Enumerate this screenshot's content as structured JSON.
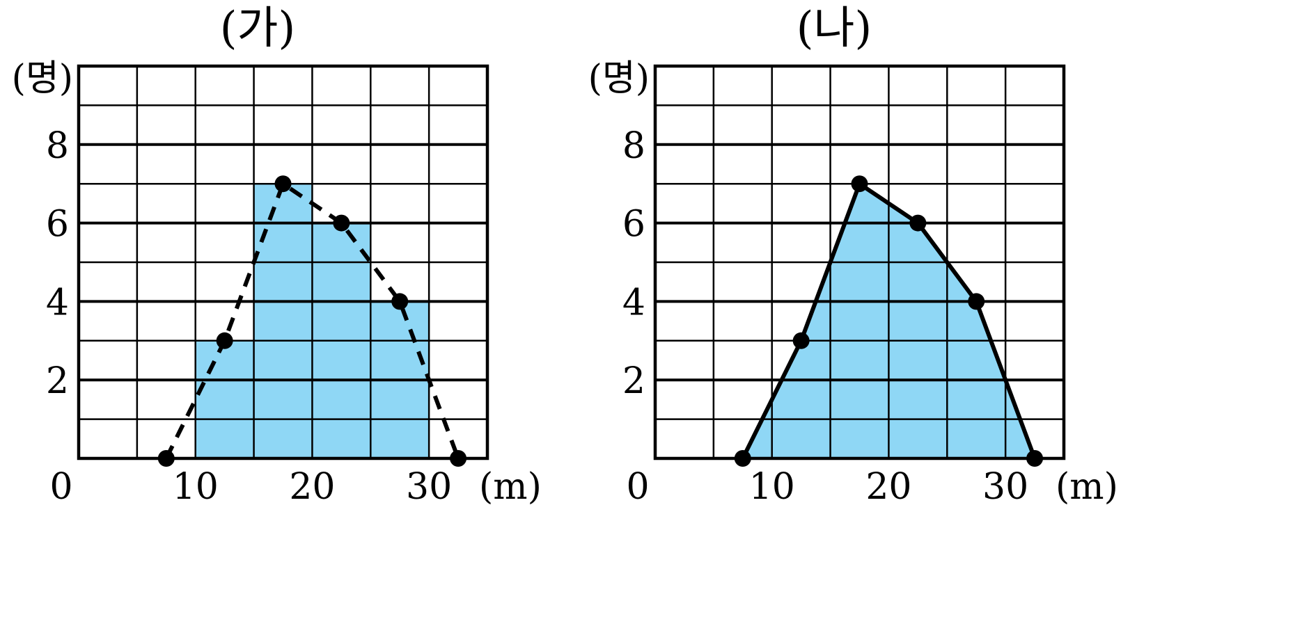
{
  "chart_data": [
    {
      "type": "bar",
      "title": "(가)",
      "ylabel": "(명)",
      "xlabel": "(m)",
      "origin_label": "0",
      "x_ticks": [
        "10",
        "20",
        "30"
      ],
      "y_ticks": [
        "2",
        "4",
        "6",
        "8"
      ],
      "xlim": [
        0,
        35
      ],
      "ylim": [
        0,
        10
      ],
      "bins": [
        [
          10,
          15
        ],
        [
          15,
          20
        ],
        [
          20,
          25
        ],
        [
          25,
          30
        ]
      ],
      "values": [
        3,
        7,
        6,
        4
      ],
      "polygon": {
        "style": "dashed",
        "points": [
          [
            7.5,
            0
          ],
          [
            12.5,
            3
          ],
          [
            17.5,
            7
          ],
          [
            22.5,
            6
          ],
          [
            27.5,
            4
          ],
          [
            32.5,
            0
          ]
        ]
      },
      "grid": true,
      "fill_color": "#8fd7f5"
    },
    {
      "type": "area",
      "title": "(나)",
      "ylabel": "(명)",
      "xlabel": "(m)",
      "origin_label": "0",
      "x_ticks": [
        "10",
        "20",
        "30"
      ],
      "y_ticks": [
        "2",
        "4",
        "6",
        "8"
      ],
      "xlim": [
        0,
        35
      ],
      "ylim": [
        0,
        10
      ],
      "polygon": {
        "style": "solid",
        "points": [
          [
            7.5,
            0
          ],
          [
            12.5,
            3
          ],
          [
            17.5,
            7
          ],
          [
            22.5,
            6
          ],
          [
            27.5,
            4
          ],
          [
            32.5,
            0
          ]
        ]
      },
      "grid": true,
      "fill_color": "#8fd7f5"
    }
  ]
}
